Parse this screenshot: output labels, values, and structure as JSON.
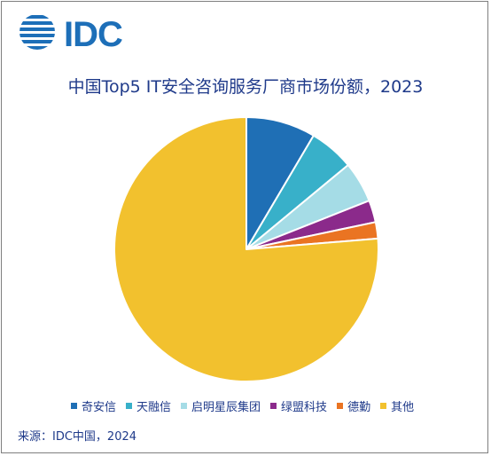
{
  "logo": {
    "text": "IDC"
  },
  "chart_data": {
    "type": "pie",
    "title": "中国Top5 IT安全咨询服务厂商市场份额，2023",
    "categories": [
      "奇安信",
      "天融信",
      "启明星辰集团",
      "绿盟科技",
      "德勤",
      "其他"
    ],
    "values": [
      8.5,
      5.5,
      5.0,
      2.7,
      2.0,
      76.3
    ],
    "colors": [
      "#1f6fb5",
      "#38b0c9",
      "#a5dce6",
      "#8b2a8b",
      "#ea7422",
      "#f2c12e"
    ],
    "legend_position": "bottom",
    "start": "12 o'clock, clockwise"
  },
  "source": "来源：IDC中国，2024"
}
